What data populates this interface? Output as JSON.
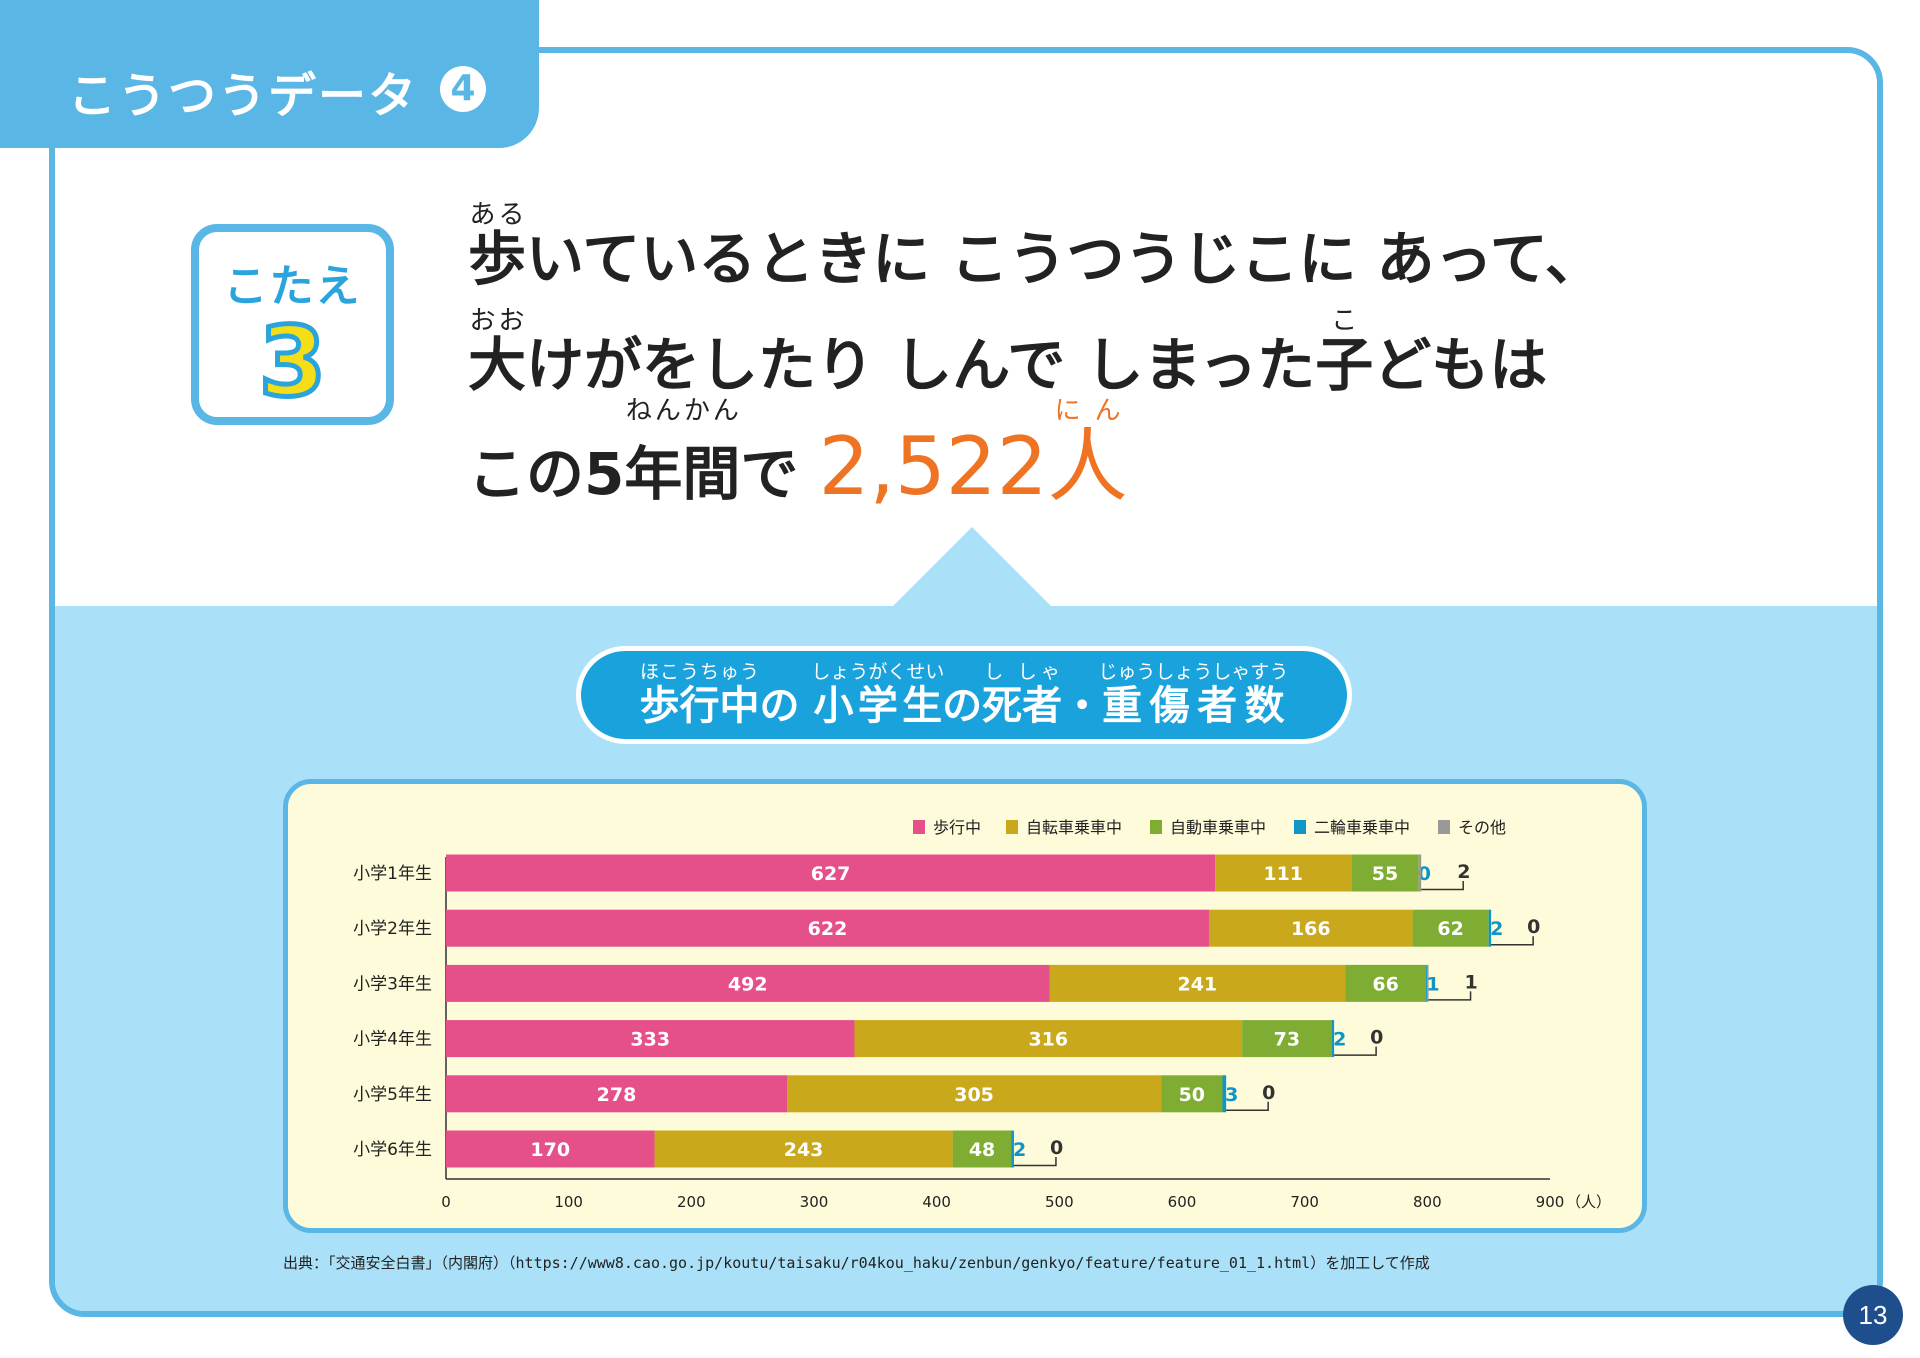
{
  "header": {
    "title": "こうつうデータ",
    "number": "4"
  },
  "answer_box": {
    "label": "こたえ",
    "number": "3"
  },
  "answer": {
    "line1": {
      "ruby_base": "歩",
      "ruby": "ある",
      "rest": "いているときに こうつうじこに あって、"
    },
    "line2": {
      "ruby1_base": "大",
      "ruby1": "おお",
      "mid": "けがをしたり しんで しまった",
      "ruby2_base": "子",
      "ruby2": "こ",
      "rest": "どもは"
    },
    "line3": {
      "pre": "この5",
      "ruby_base": "年間",
      "ruby": "ねんかん",
      "post": "で ",
      "count": "2,522",
      "unit_base": "人",
      "unit_ruby": "にん"
    }
  },
  "chart_title": {
    "p1_base": "歩行中",
    "p1_ruby": "ほこうちゅう",
    "p2": "の ",
    "p3_base": "小学生",
    "p3_ruby": "しょうがくせい",
    "p4": "の",
    "p5_base": "死者",
    "p5_ruby": "し しゃ",
    "p6": "・",
    "p7_base": "重傷者数",
    "p7_ruby": "じゅうしょうしゃすう"
  },
  "chart_data": {
    "type": "bar",
    "orientation": "horizontal",
    "stacked": true,
    "categories": [
      "小学1年生",
      "小学2年生",
      "小学3年生",
      "小学4年生",
      "小学5年生",
      "小学6年生"
    ],
    "series": [
      {
        "name": "歩行中",
        "color": "#e6508a",
        "values": [
          627,
          622,
          492,
          333,
          278,
          170
        ]
      },
      {
        "name": "自転車乗車中",
        "color": "#c9a81c",
        "values": [
          111,
          166,
          241,
          316,
          305,
          243
        ]
      },
      {
        "name": "自動車乗車中",
        "color": "#7fad33",
        "values": [
          55,
          62,
          66,
          73,
          50,
          48
        ]
      },
      {
        "name": "二輪車乗車中",
        "color": "#0f95c6",
        "values": [
          0,
          2,
          1,
          2,
          3,
          2
        ]
      },
      {
        "name": "その他",
        "color": "#999999",
        "values": [
          2,
          0,
          1,
          0,
          0,
          0
        ]
      }
    ],
    "xlim": [
      0,
      900
    ],
    "xticks": [
      "0",
      "100",
      "200",
      "300",
      "400",
      "500",
      "600",
      "700",
      "800",
      "900"
    ],
    "xunit": "（人）",
    "legend_position": "top-right"
  },
  "source": "出典：「交通安全白書」（内閣府）（https://www8.cao.go.jp/koutu/taisaku/r04kou_haku/zenbun/genkyo/feature/feature_01_1.html）を加工して作成",
  "page_number": "13"
}
